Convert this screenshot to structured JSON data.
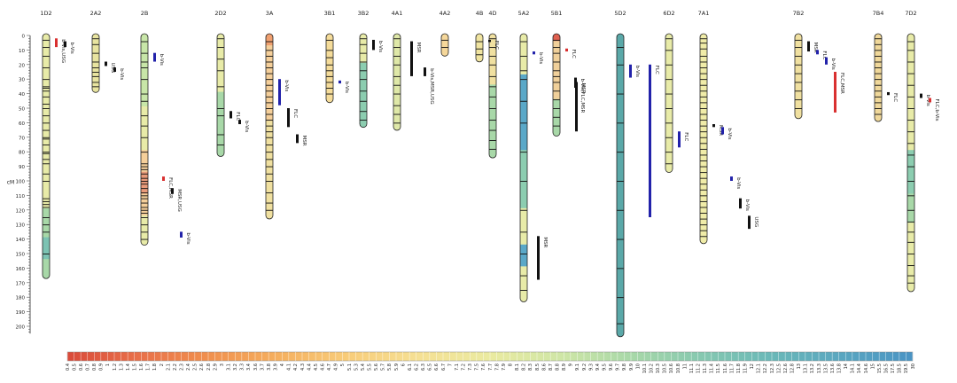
{
  "axis": {
    "unit": "cM",
    "ticks": [
      "0",
      "10",
      "20",
      "30",
      "40",
      "50",
      "60",
      "70",
      "80",
      "90",
      "100",
      "110",
      "120",
      "130",
      "140",
      "150",
      "160",
      "170",
      "180",
      "190",
      "200"
    ]
  },
  "chromosomes": [
    {
      "name": "1D2",
      "length": 166,
      "bands": [
        3,
        8,
        14,
        22,
        30,
        35,
        36,
        38,
        42,
        47,
        50,
        55,
        60,
        65,
        70,
        71,
        75,
        80,
        81,
        85,
        88,
        95,
        100,
        112,
        114,
        116,
        118,
        125,
        130,
        135,
        150
      ],
      "colorSegments": [
        {
          "from": 0,
          "to": 120,
          "color": "#e8eba8"
        },
        {
          "from": 120,
          "to": 140,
          "color": "#a8d8a8"
        },
        {
          "from": 140,
          "to": 155,
          "color": "#7cc3b3"
        },
        {
          "from": 155,
          "to": 166,
          "color": "#a8d8a8"
        }
      ]
    },
    {
      "name": "2A2",
      "length": 38,
      "bands": [
        2,
        6,
        12,
        18,
        22,
        25,
        28,
        32,
        35
      ],
      "colorSegments": [
        {
          "from": 0,
          "to": 38,
          "color": "#e8e4a0"
        }
      ]
    },
    {
      "name": "2B",
      "length": 143,
      "bands": [
        4,
        12,
        18,
        22,
        30,
        40,
        45,
        55,
        62,
        70,
        80,
        88,
        90,
        92,
        95,
        98,
        100,
        102,
        105,
        108,
        110,
        112,
        115,
        118,
        120,
        122,
        125,
        130,
        135,
        140
      ],
      "colorSegments": [
        {
          "from": 0,
          "to": 50,
          "color": "#c8e6a8"
        },
        {
          "from": 50,
          "to": 80,
          "color": "#e8eba8"
        },
        {
          "from": 80,
          "to": 95,
          "color": "#f5cf9a"
        },
        {
          "from": 95,
          "to": 110,
          "color": "#e89a7a"
        },
        {
          "from": 110,
          "to": 125,
          "color": "#f5cf9a"
        },
        {
          "from": 125,
          "to": 143,
          "color": "#e8eba8"
        }
      ]
    },
    {
      "name": "2D2",
      "length": 82,
      "bands": [
        2,
        8,
        16,
        24,
        35,
        50,
        55,
        68,
        75
      ],
      "colorSegments": [
        {
          "from": 0,
          "to": 40,
          "color": "#e8eba8"
        },
        {
          "from": 40,
          "to": 82,
          "color": "#a8d8a8"
        }
      ]
    },
    {
      "name": "3A",
      "length": 125,
      "bands": [
        4,
        10,
        14,
        18,
        22,
        26,
        30,
        34,
        38,
        42,
        46,
        50,
        54,
        58,
        62,
        66,
        70,
        75,
        80,
        85,
        90,
        95,
        100,
        108,
        115,
        120
      ],
      "colorSegments": [
        {
          "from": 0,
          "to": 8,
          "color": "#f0a070"
        },
        {
          "from": 8,
          "to": 60,
          "color": "#f5cf9a"
        },
        {
          "from": 60,
          "to": 125,
          "color": "#f0e0a0"
        }
      ]
    },
    {
      "name": "3B1",
      "length": 45,
      "bands": [
        3,
        10,
        15,
        20,
        24,
        28,
        32,
        36,
        40
      ],
      "colorSegments": [
        {
          "from": 0,
          "to": 45,
          "color": "#f5dc9a"
        }
      ]
    },
    {
      "name": "3B2",
      "length": 62,
      "bands": [
        2,
        6,
        12,
        18,
        24,
        30,
        38,
        45,
        52,
        58
      ],
      "colorSegments": [
        {
          "from": 0,
          "to": 20,
          "color": "#e8eba8"
        },
        {
          "from": 20,
          "to": 62,
          "color": "#8ccdb0"
        }
      ]
    },
    {
      "name": "4A1",
      "length": 64,
      "bands": [
        2,
        8,
        14,
        20,
        28,
        34,
        40,
        48,
        54,
        60
      ],
      "colorSegments": [
        {
          "from": 0,
          "to": 64,
          "color": "#dfe8a8"
        }
      ]
    },
    {
      "name": "4A2",
      "length": 13,
      "bands": [
        3,
        8
      ],
      "colorSegments": [
        {
          "from": 0,
          "to": 13,
          "color": "#f5d79a"
        }
      ]
    },
    {
      "name": "4B",
      "length": 17,
      "bands": [
        4,
        9,
        13
      ],
      "colorSegments": [
        {
          "from": 0,
          "to": 17,
          "color": "#f0e4a0"
        }
      ]
    },
    {
      "name": "4D",
      "length": 83,
      "bands": [
        2,
        8,
        14,
        20,
        28,
        35,
        42,
        50,
        58,
        65,
        72,
        78
      ],
      "colorSegments": [
        {
          "from": 0,
          "to": 35,
          "color": "#f0e0a0"
        },
        {
          "from": 35,
          "to": 83,
          "color": "#a8d8a8"
        }
      ]
    },
    {
      "name": "5A2",
      "length": 182,
      "bands": [
        4,
        14,
        24,
        30,
        45,
        60,
        80,
        100,
        120,
        135,
        150,
        165,
        175
      ],
      "colorSegments": [
        {
          "from": 0,
          "to": 28,
          "color": "#e8eba8"
        },
        {
          "from": 28,
          "to": 80,
          "color": "#5aa8c8"
        },
        {
          "from": 80,
          "to": 120,
          "color": "#8ccdb0"
        },
        {
          "from": 120,
          "to": 145,
          "color": "#e8eba8"
        },
        {
          "from": 145,
          "to": 160,
          "color": "#5aa8c8"
        },
        {
          "from": 160,
          "to": 182,
          "color": "#e8eba8"
        }
      ]
    },
    {
      "name": "5B1",
      "length": 68,
      "bands": [
        3,
        8,
        12,
        18,
        24,
        28,
        32,
        38,
        44,
        50,
        56,
        62
      ],
      "colorSegments": [
        {
          "from": 0,
          "to": 5,
          "color": "#e06050"
        },
        {
          "from": 5,
          "to": 45,
          "color": "#f0d09a"
        },
        {
          "from": 45,
          "to": 68,
          "color": "#a8d8a8"
        }
      ]
    },
    {
      "name": "5D2",
      "length": 206,
      "bands": [
        8,
        20,
        40,
        60,
        80,
        100,
        120,
        140,
        160,
        180,
        198
      ],
      "colorSegments": [
        {
          "from": 0,
          "to": 206,
          "color": "#5aa8a8"
        }
      ]
    },
    {
      "name": "6D2",
      "length": 93,
      "bands": [
        2,
        10,
        20,
        30,
        40,
        50,
        60,
        70,
        80,
        88
      ],
      "colorSegments": [
        {
          "from": 0,
          "to": 93,
          "color": "#e8eba8"
        }
      ]
    },
    {
      "name": "7A1",
      "length": 142,
      "bands": [
        2,
        5,
        9,
        14,
        18,
        22,
        26,
        30,
        34,
        38,
        42,
        46,
        50,
        54,
        58,
        62,
        66,
        70,
        74,
        78,
        82,
        86,
        90,
        94,
        98,
        102,
        106,
        110,
        114,
        118,
        122,
        126,
        130,
        134,
        138
      ],
      "colorSegments": [
        {
          "from": 0,
          "to": 142,
          "color": "#f0eca8"
        }
      ]
    },
    {
      "name": "7B2",
      "length": 56,
      "bands": [
        3,
        8,
        14,
        20,
        26,
        32,
        38,
        44,
        50
      ],
      "colorSegments": [
        {
          "from": 0,
          "to": 56,
          "color": "#f0e0a0"
        }
      ]
    },
    {
      "name": "7B4",
      "length": 58,
      "bands": [
        2,
        6,
        10,
        14,
        18,
        22,
        26,
        30,
        34,
        38,
        42,
        46,
        50,
        54
      ],
      "colorSegments": [
        {
          "from": 0,
          "to": 58,
          "color": "#f0d89a"
        }
      ]
    },
    {
      "name": "7D2",
      "length": 175,
      "bands": [
        4,
        10,
        18,
        26,
        34,
        42,
        50,
        58,
        66,
        74,
        82,
        90,
        100,
        110,
        120,
        128,
        135,
        142,
        150,
        158,
        165,
        170
      ],
      "colorSegments": [
        {
          "from": 0,
          "to": 80,
          "color": "#e8eba8"
        },
        {
          "from": 80,
          "to": 110,
          "color": "#8ccdb0"
        },
        {
          "from": 110,
          "to": 130,
          "color": "#a8d8a8"
        },
        {
          "from": 130,
          "to": 175,
          "color": "#e8eba8"
        }
      ]
    }
  ],
  "qtls": [
    {
      "chrom": "1D2",
      "start": 2,
      "end": 8,
      "label": "b-Vis,USG",
      "color": "#d93030"
    },
    {
      "chrom": "1D2",
      "start": 4,
      "end": 8,
      "label": "b-Vis",
      "color": "#111111"
    },
    {
      "chrom": "2A2",
      "start": 18,
      "end": 21,
      "label": "USG",
      "color": "#111111"
    },
    {
      "chrom": "2A2",
      "start": 22,
      "end": 25,
      "label": "b-Vis",
      "color": "#111111"
    },
    {
      "chrom": "2B",
      "start": 12,
      "end": 18,
      "label": "b-Vis",
      "color": "#2222aa"
    },
    {
      "chrom": "2B",
      "start": 97,
      "end": 100,
      "label": "FLC,MSR",
      "color": "#d93030"
    },
    {
      "chrom": "2B",
      "start": 105,
      "end": 109,
      "label": "MSR,USG",
      "color": "#111111"
    },
    {
      "chrom": "2B",
      "start": 135,
      "end": 139,
      "label": "b-Vis",
      "color": "#2222aa"
    },
    {
      "chrom": "2D2",
      "start": 52,
      "end": 57,
      "label": "FLC",
      "color": "#111111"
    },
    {
      "chrom": "2D2",
      "start": 58,
      "end": 61,
      "label": "b-Vis",
      "color": "#111111"
    },
    {
      "chrom": "3A",
      "start": 30,
      "end": 48,
      "label": "b-Vis",
      "color": "#2222aa"
    },
    {
      "chrom": "3A",
      "start": 50,
      "end": 63,
      "label": "FLC",
      "color": "#111111"
    },
    {
      "chrom": "3A",
      "start": 68,
      "end": 74,
      "label": "MSR",
      "color": "#111111"
    },
    {
      "chrom": "3B1",
      "start": 31,
      "end": 33,
      "label": "b-Vis",
      "color": "#2222aa"
    },
    {
      "chrom": "3B2",
      "start": 3,
      "end": 10,
      "label": "b-Vis",
      "color": "#111111"
    },
    {
      "chrom": "4A1",
      "start": 4,
      "end": 28,
      "label": "MSR",
      "color": "#111111"
    },
    {
      "chrom": "4A2",
      "start": 22,
      "end": 28,
      "label": "b-Vis,MSR,USG",
      "color": "#111111"
    },
    {
      "chrom": "4B",
      "start": 3,
      "end": 4,
      "label": "FLC",
      "color": "#111111"
    },
    {
      "chrom": "5A2",
      "start": 11,
      "end": 13,
      "label": "b-Vis",
      "color": "#2222aa"
    },
    {
      "chrom": "5A2",
      "start": 138,
      "end": 168,
      "label": "MSR",
      "color": "#111111"
    },
    {
      "chrom": "5B1",
      "start": 9,
      "end": 11,
      "label": "FLC",
      "color": "#d93030"
    },
    {
      "chrom": "5B1",
      "start": 29,
      "end": 36,
      "label": "b-Vis,FLC,MSR",
      "color": "#111111"
    },
    {
      "chrom": "5B1",
      "start": 32,
      "end": 66,
      "label": "MSR",
      "color": "#111111"
    },
    {
      "chrom": "5D2",
      "start": 20,
      "end": 29,
      "label": "b-Vis",
      "color": "#2222aa"
    },
    {
      "chrom": "5D2",
      "start": 20,
      "end": 125,
      "label": "FLC",
      "color": "#2222aa"
    },
    {
      "chrom": "6D2",
      "start": 66,
      "end": 77,
      "label": "FLC",
      "color": "#2222aa"
    },
    {
      "chrom": "7A1",
      "start": 61,
      "end": 63,
      "label": "MSR",
      "color": "#111111"
    },
    {
      "chrom": "7A1",
      "start": 63,
      "end": 68,
      "label": "b-Vis",
      "color": "#2222aa"
    },
    {
      "chrom": "7A1",
      "start": 97,
      "end": 100,
      "label": "b-Vis",
      "color": "#2222aa"
    },
    {
      "chrom": "7A1",
      "start": 112,
      "end": 119,
      "label": "b-Vis",
      "color": "#111111"
    },
    {
      "chrom": "7A1",
      "start": 124,
      "end": 133,
      "label": "USG",
      "color": "#111111"
    },
    {
      "chrom": "7B2",
      "start": 4,
      "end": 11,
      "label": "MSR",
      "color": "#111111"
    },
    {
      "chrom": "7B2",
      "start": 10,
      "end": 13,
      "label": "FLC",
      "color": "#2222aa"
    },
    {
      "chrom": "7B2",
      "start": 15,
      "end": 20,
      "label": "b-Vis",
      "color": "#2222aa"
    },
    {
      "chrom": "7B2",
      "start": 25,
      "end": 53,
      "label": "FLC,MSR",
      "color": "#d93030"
    },
    {
      "chrom": "7B4",
      "start": 39,
      "end": 41,
      "label": "FLC",
      "color": "#111111"
    },
    {
      "chrom": "7D2",
      "start": 40,
      "end": 43,
      "label": "b-Vis",
      "color": "#111111"
    },
    {
      "chrom": "7D2",
      "start": 43,
      "end": 46,
      "label": "FLC,b-Vis",
      "color": "#d93030"
    }
  ],
  "legend": {
    "values": [
      "0.4",
      "0.5",
      "0.6",
      "0.7",
      "0.8",
      "0.9",
      "1",
      "1.2",
      "1.3",
      "1.4",
      "1.5",
      "1.6",
      "1.7",
      "1.8",
      "2",
      "2.1",
      "2.2",
      "2.3",
      "2.4",
      "2.5",
      "2.6",
      "2.8",
      "2.9",
      "3",
      "3.1",
      "3.2",
      "3.3",
      "3.4",
      "3.6",
      "3.7",
      "3.8",
      "3.9",
      "4",
      "4.1",
      "4.2",
      "4.3",
      "4.4",
      "4.5",
      "4.6",
      "4.7",
      "4.9",
      "5",
      "5.1",
      "5.3",
      "5.4",
      "5.5",
      "5.6",
      "5.7",
      "5.8",
      "5.9",
      "6",
      "6.1",
      "6.2",
      "6.3",
      "6.5",
      "6.6",
      "6.7",
      "7",
      "7.1",
      "7.2",
      "7.3",
      "7.5",
      "7.6",
      "7.7",
      "7.8",
      "7.9",
      "8",
      "8.1",
      "8.2",
      "8.3",
      "8.5",
      "8.6",
      "8.7",
      "8.8",
      "8.9",
      "9",
      "9.1",
      "9.2",
      "9.3",
      "9.4",
      "9.5",
      "9.6",
      "9.7",
      "9.8",
      "9.9",
      "10",
      "10.1",
      "10.2",
      "10.3",
      "10.5",
      "10.6",
      "10.8",
      "11",
      "11.1",
      "11.2",
      "11.3",
      "11.4",
      "11.5",
      "11.6",
      "11.7",
      "11.8",
      "11.9",
      "12",
      "12.1",
      "12.2",
      "12.3",
      "12.5",
      "12.6",
      "12.8",
      "13",
      "13.1",
      "13.2",
      "13.3",
      "13.5",
      "13.6",
      "13.8",
      "14",
      "14.1",
      "14.4",
      "14.6",
      "15",
      "15.5",
      "16.5",
      "17.5",
      "18.5",
      "19.5",
      "30"
    ],
    "colors": [
      "#d94a3a",
      "#e8704a",
      "#f0904e",
      "#f5b060",
      "#f8cd7a",
      "#f5e094",
      "#eaeaa0",
      "#cfe6a6",
      "#a8d8a8",
      "#86c8b0",
      "#6ab8b8",
      "#5aa6c0",
      "#4a94c4"
    ]
  }
}
